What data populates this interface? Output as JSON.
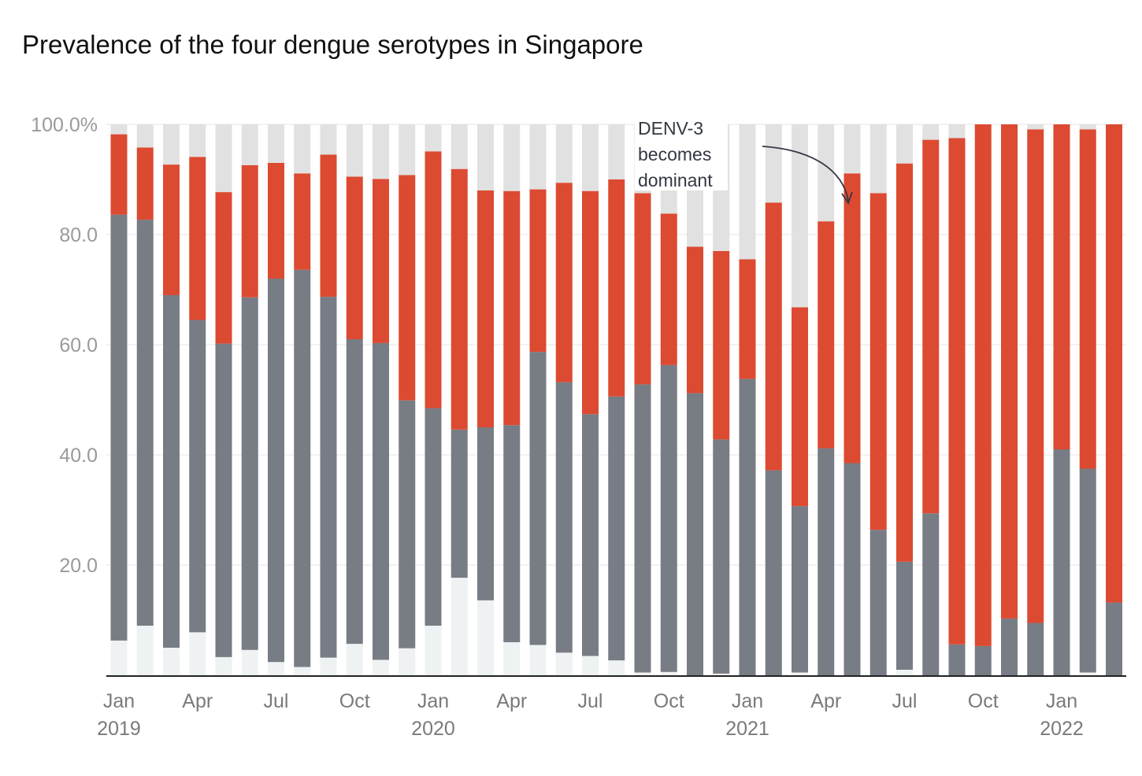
{
  "chart_data": {
    "type": "bar",
    "stacked": true,
    "title": "Prevalence of the four dengue serotypes in Singapore",
    "xlabel": "",
    "ylabel": "",
    "ylim": [
      0,
      100
    ],
    "yticks": [
      "100.0%",
      "80.0",
      "60.0",
      "40.0",
      "20.0"
    ],
    "ytick_values": [
      100,
      80,
      60,
      40,
      20
    ],
    "categories": [
      "Jan 2019",
      "Feb 2019",
      "Mar 2019",
      "Apr 2019",
      "May 2019",
      "Jun 2019",
      "Jul 2019",
      "Aug 2019",
      "Sep 2019",
      "Oct 2019",
      "Nov 2019",
      "Dec 2019",
      "Jan 2020",
      "Feb 2020",
      "Mar 2020",
      "Apr 2020",
      "May 2020",
      "Jun 2020",
      "Jul 2020",
      "Aug 2020",
      "Sep 2020",
      "Oct 2020",
      "Nov 2020",
      "Dec 2020",
      "Jan 2021",
      "Feb 2021",
      "Mar 2021",
      "Apr 2021",
      "May 2021",
      "Jun 2021",
      "Jul 2021",
      "Aug 2021",
      "Sep 2021",
      "Oct 2021",
      "Nov 2021",
      "Dec 2021",
      "Jan 2022",
      "Feb 2022",
      "Mar 2022"
    ],
    "x_tick_labels": [
      {
        "index": 0,
        "month": "Jan",
        "year": "2019"
      },
      {
        "index": 3,
        "month": "Apr",
        "year": ""
      },
      {
        "index": 6,
        "month": "Jul",
        "year": ""
      },
      {
        "index": 9,
        "month": "Oct",
        "year": ""
      },
      {
        "index": 12,
        "month": "Jan",
        "year": "2020"
      },
      {
        "index": 15,
        "month": "Apr",
        "year": ""
      },
      {
        "index": 18,
        "month": "Jul",
        "year": ""
      },
      {
        "index": 21,
        "month": "Oct",
        "year": ""
      },
      {
        "index": 24,
        "month": "Jan",
        "year": "2021"
      },
      {
        "index": 27,
        "month": "Apr",
        "year": ""
      },
      {
        "index": 30,
        "month": "Jul",
        "year": ""
      },
      {
        "index": 33,
        "month": "Oct",
        "year": ""
      },
      {
        "index": 36,
        "month": "Jan",
        "year": "2022"
      }
    ],
    "series": [
      {
        "name": "bottom",
        "color": "#eef2f2",
        "values": [
          6.3,
          9,
          5,
          7.8,
          3.3,
          4.6,
          2.4,
          1.5,
          3.2,
          5.7,
          2.8,
          4.9,
          9,
          17.7,
          13.6,
          6,
          5.5,
          4.1,
          3.5,
          2.7,
          0.5,
          0.6,
          0,
          0.3,
          0,
          0,
          0.5,
          0,
          0,
          0,
          1,
          0,
          0,
          0,
          0,
          0,
          0,
          0.5,
          0
        ]
      },
      {
        "name": "grey",
        "color": "#787c84",
        "values": [
          77.3,
          73.7,
          64,
          56.7,
          56.9,
          64,
          69.6,
          72.1,
          65.5,
          55.3,
          57.5,
          45,
          39.5,
          26.9,
          31.4,
          39.4,
          53.2,
          49.1,
          43.9,
          47.9,
          52.3,
          55.7,
          51.2,
          42.5,
          53.8,
          37.2,
          30.2,
          41.2,
          38.5,
          26.4,
          19.6,
          29.4,
          5.6,
          5.3,
          10.3,
          9.5,
          41,
          37,
          13.2
        ]
      },
      {
        "name": "red",
        "color": "#dc4a32",
        "values": [
          14.6,
          13.1,
          23.7,
          29.6,
          27.5,
          24,
          21,
          17.5,
          25.8,
          29.5,
          29.8,
          40.9,
          46.6,
          47.3,
          43,
          42.5,
          29.5,
          36.2,
          40.5,
          39.4,
          34.7,
          27.5,
          26.6,
          34.2,
          21.7,
          48.6,
          36.1,
          41.2,
          52.6,
          61.1,
          72.3,
          67.8,
          91.9,
          94.7,
          89.7,
          89.6,
          59,
          61.6,
          86.8
        ]
      },
      {
        "name": "top",
        "color": "#e1e1e1",
        "values": [
          1.8,
          4.2,
          7.3,
          5.9,
          12.3,
          7.4,
          7,
          8.9,
          5.5,
          9.5,
          9.9,
          9.2,
          4.9,
          8.1,
          12,
          12.1,
          11.8,
          10.6,
          12.1,
          10,
          12.5,
          16.2,
          22.2,
          23,
          24.5,
          14.2,
          33.2,
          17.6,
          8.9,
          12.5,
          7.1,
          2.8,
          2.5,
          0,
          0,
          0.9,
          0,
          0.9,
          0
        ]
      }
    ],
    "annotation": {
      "lines": [
        "DENV-3",
        "becomes",
        "dominant"
      ],
      "target_index": 28
    }
  }
}
